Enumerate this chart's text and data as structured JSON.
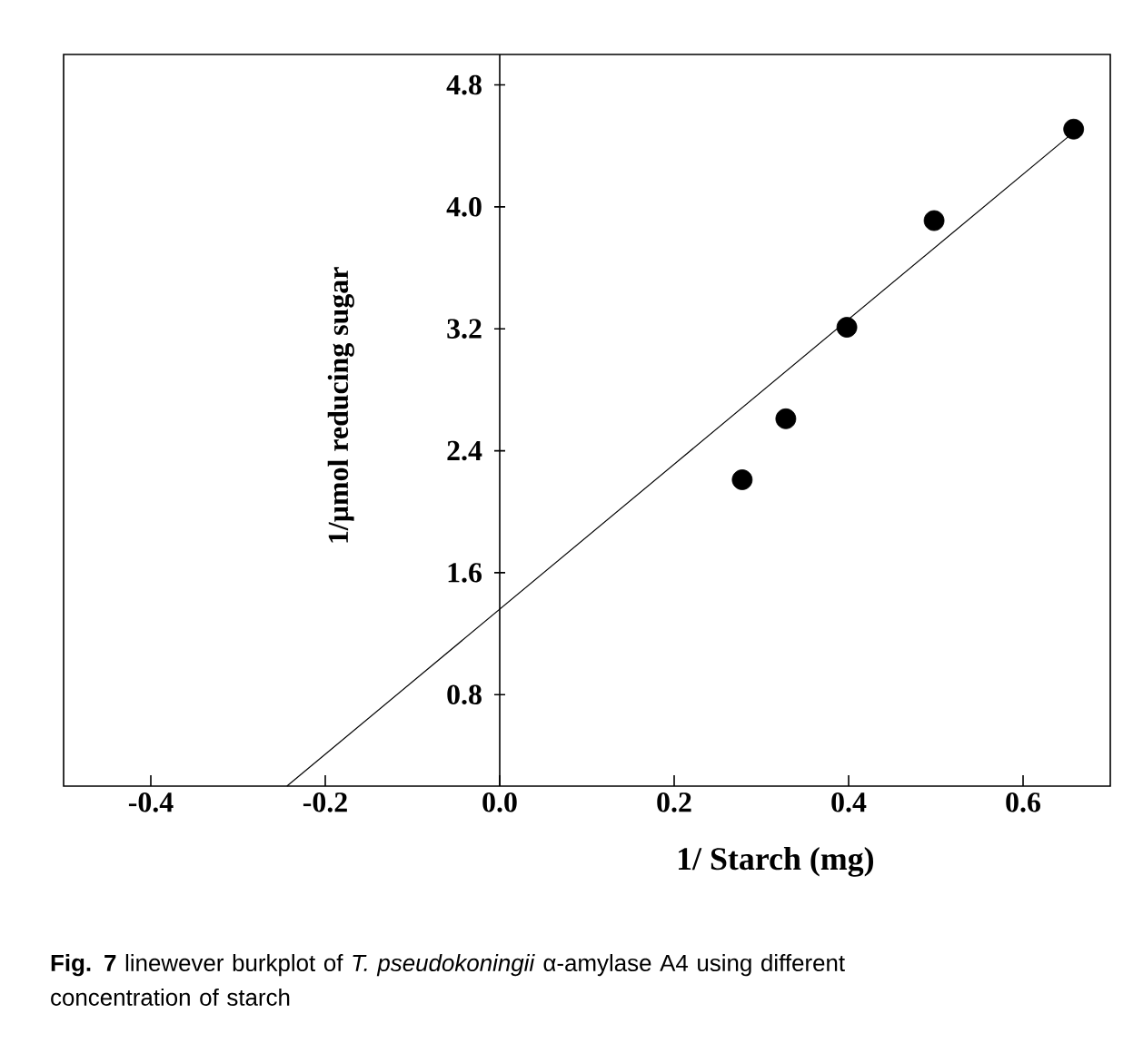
{
  "chart_data": {
    "type": "scatter",
    "xlabel": "1/ Starch (mg)",
    "ylabel": "1/µmol reducing sugar",
    "annotations": [
      "**Fig. 7** linewever burkplot of *T. pseudokoningii* α-amylase A4 using different concentration of starch"
    ],
    "x": [
      0.278,
      0.328,
      0.398,
      0.498,
      0.658
    ],
    "series": [
      {
        "color": "#000000",
        "marker": "circle",
        "values": [
          2.21,
          2.61,
          3.21,
          3.91,
          4.51
        ]
      },
      {
        "type": "line",
        "x": [
          -0.244,
          0.658
        ],
        "values": [
          0.2,
          4.49
        ],
        "color": "#000000",
        "marker": "none",
        "line_style": "solid"
      }
    ],
    "xlim": [
      -0.5,
      0.7
    ],
    "ylim": [
      0.2,
      5.0
    ],
    "xticks": [
      -0.4,
      -0.2,
      {
        "value": 0,
        "label": "0.0"
      },
      0.2,
      0.4,
      0.6
    ],
    "yticks": [
      0.8,
      1.6,
      2.4,
      3.2,
      {
        "value": 4,
        "label": "4.0"
      },
      4.8
    ],
    "grid": false
  }
}
